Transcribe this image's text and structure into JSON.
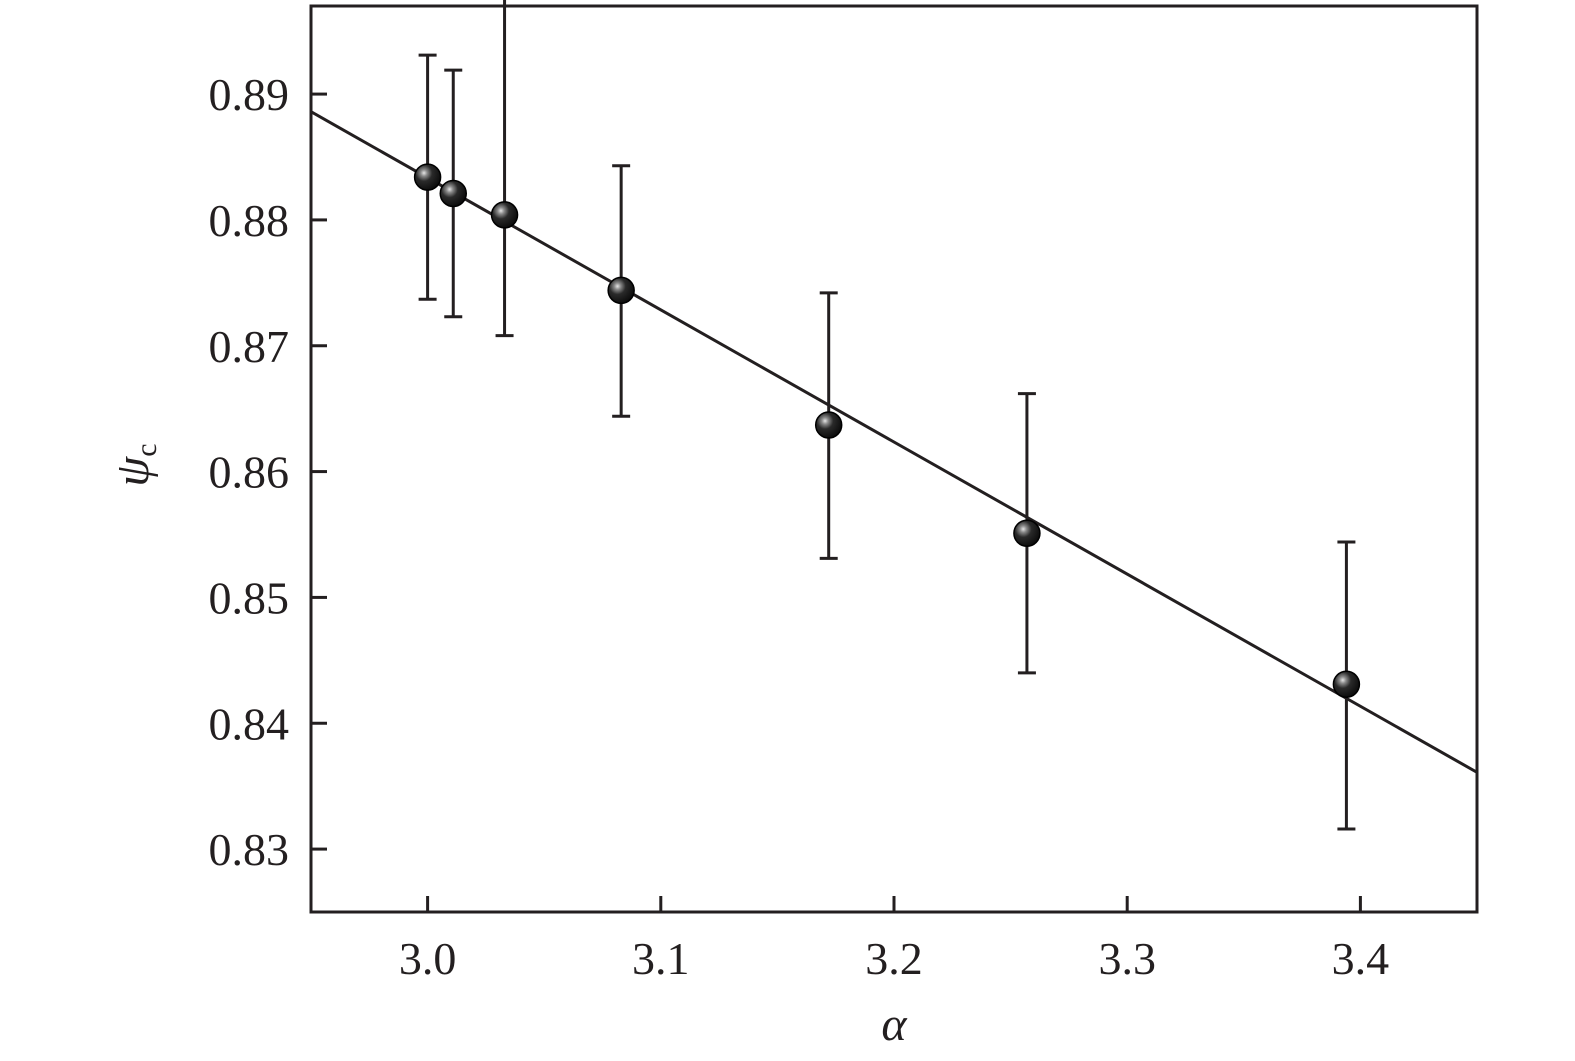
{
  "chart_data": {
    "type": "scatter",
    "title": "",
    "xlabel": "α",
    "ylabel": {
      "symbol": "ψ",
      "subscript": "c"
    },
    "xlim": [
      2.95,
      3.45
    ],
    "ylim": [
      0.825,
      0.897
    ],
    "x_ticks": [
      3.0,
      3.1,
      3.2,
      3.3,
      3.4
    ],
    "x_tick_labels": [
      "3.0",
      "3.1",
      "3.2",
      "3.3",
      "3.4"
    ],
    "y_ticks": [
      0.83,
      0.84,
      0.85,
      0.86,
      0.87,
      0.88,
      0.89
    ],
    "y_tick_labels": [
      "0.83",
      "0.84",
      "0.85",
      "0.86",
      "0.87",
      "0.88",
      "0.89"
    ],
    "grid": false,
    "series": [
      {
        "type": "scatter",
        "x": [
          3.0,
          3.011,
          3.033,
          3.083,
          3.172,
          3.257,
          3.394
        ],
        "y": [
          0.8834,
          0.8821,
          0.8804,
          0.8744,
          0.8637,
          0.8551,
          0.8431
        ],
        "yerr_low": [
          0.8737,
          0.8723,
          0.8708,
          0.8644,
          0.8531,
          0.844,
          0.8316
        ],
        "yerr_high": [
          0.8931,
          0.8919,
          0.9001,
          0.8843,
          0.8742,
          0.8662,
          0.8544
        ]
      },
      {
        "type": "line",
        "x": [
          2.95,
          3.45
        ],
        "y": [
          0.8886,
          0.8361
        ]
      }
    ]
  }
}
